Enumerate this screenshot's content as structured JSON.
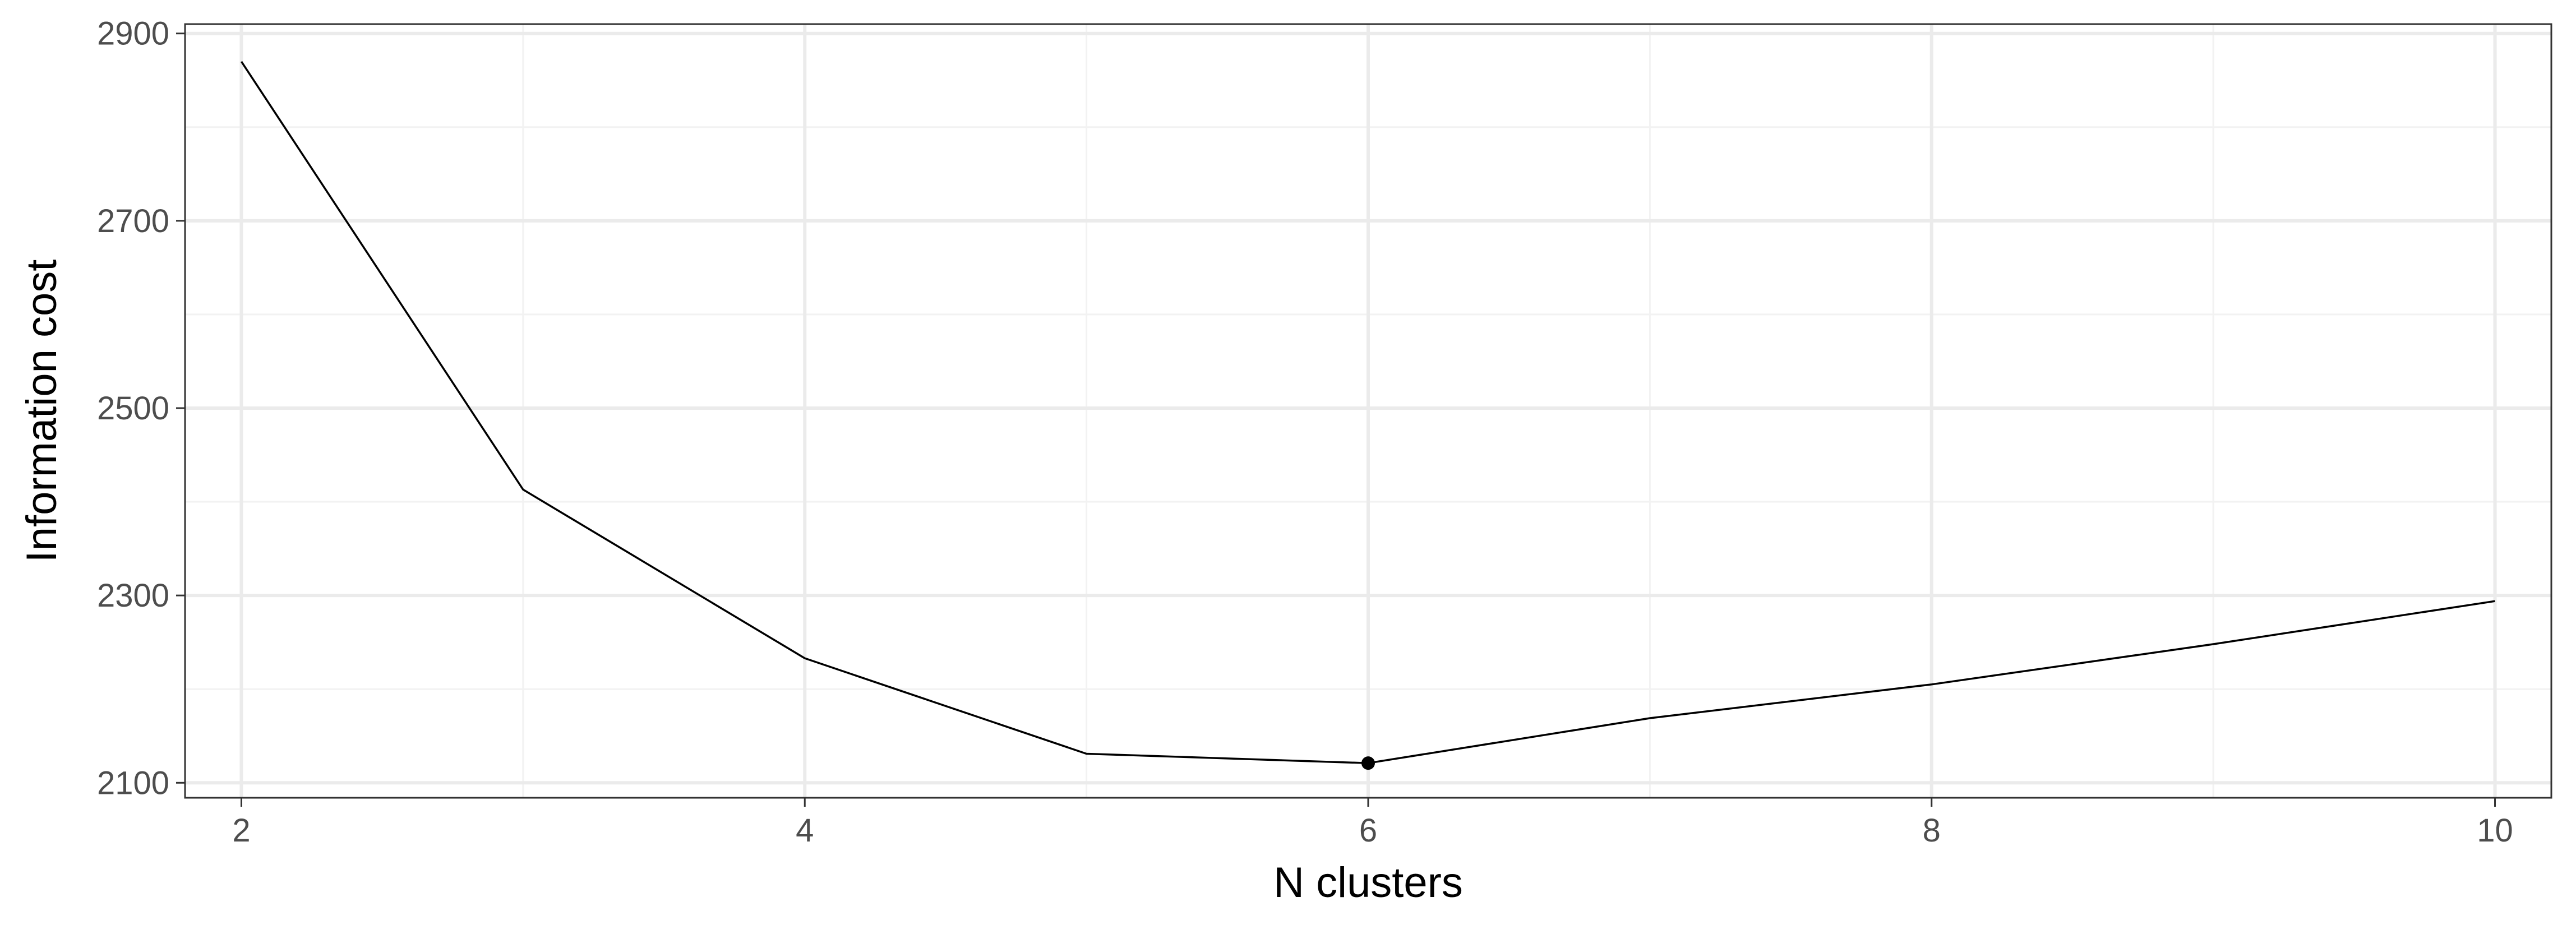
{
  "chart_data": {
    "type": "line",
    "title": "",
    "xlabel": "N clusters",
    "ylabel": "Information cost",
    "x": [
      2,
      3,
      4,
      5,
      6,
      7,
      8,
      9,
      10
    ],
    "series": [
      {
        "values": [
          2870,
          2413,
          2233,
          2131,
          2121,
          2169,
          2205,
          2248,
          2294
        ]
      }
    ],
    "highlight_point": {
      "x": 6,
      "y": 2121
    },
    "xlim": [
      1.8,
      10.2
    ],
    "ylim": [
      2084,
      2910
    ],
    "x_ticks": [
      2,
      4,
      6,
      8,
      10
    ],
    "x_tick_labels": [
      "2",
      "4",
      "6",
      "8",
      "10"
    ],
    "y_ticks": [
      2100,
      2300,
      2500,
      2700,
      2900
    ],
    "y_tick_labels": [
      "2100",
      "2300",
      "2500",
      "2700",
      "2900"
    ],
    "x_minor_ticks": [
      3,
      5,
      7,
      9
    ],
    "y_minor_ticks": [
      2200,
      2400,
      2600,
      2800
    ],
    "grid": true,
    "legend": "none",
    "colors": {
      "line": "#000000",
      "grid_major": "#ebebeb",
      "grid_minor": "#f2f2f2",
      "panel_border": "#333333",
      "tick_text": "#4d4d4d",
      "axis_title": "#000000"
    }
  }
}
